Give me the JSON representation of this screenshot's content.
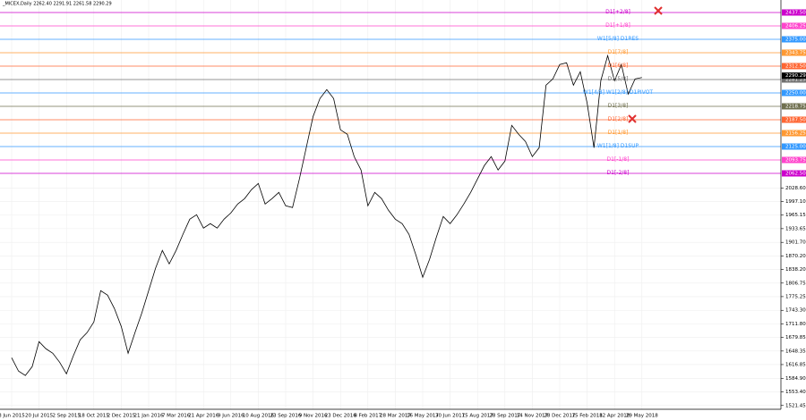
{
  "chart_data": {
    "type": "line",
    "header": "_MICEX,Daily  2262.40 2291.91 2261.58 2290.29",
    "categories": [
      "3 Jun 2015",
      null,
      null,
      null,
      "20 Jul 2015",
      null,
      null,
      null,
      "2 Sep 2015",
      null,
      null,
      null,
      "18 Oct 2015",
      null,
      null,
      null,
      "2 Dec 2015",
      null,
      null,
      null,
      "21 Jan 2016",
      null,
      null,
      null,
      "7 Mar 2016",
      null,
      null,
      null,
      "21 Apr 2016",
      null,
      null,
      null,
      "9 Jun 2016",
      null,
      null,
      null,
      "10 Aug 2016",
      null,
      null,
      null,
      "23 Sep 2016",
      null,
      null,
      null,
      "9 Nov 2016",
      null,
      null,
      null,
      "23 Dec 2016",
      null,
      null,
      null,
      "8 Feb 2017",
      null,
      null,
      null,
      "28 Mar 2017",
      null,
      null,
      null,
      "16 May 2017",
      null,
      null,
      null,
      "30 Jun 2017",
      null,
      null,
      null,
      "15 Aug 2017",
      null,
      null,
      null,
      "28 Sep 2017",
      null,
      null,
      null,
      "14 Nov 2017",
      null,
      null,
      null,
      "28 Dec 2017",
      null,
      null,
      null,
      "15 Feb 2018",
      null,
      null,
      null,
      "12 Apr 2018",
      null,
      null,
      null,
      "29 May 2018"
    ],
    "series": [
      {
        "name": "MICEX",
        "color": "#000000",
        "values": [
          1632.8,
          1601.6,
          1591.2,
          1612.0,
          1670.3,
          1653.7,
          1643.2,
          1622.4,
          1595.3,
          1637.0,
          1674.5,
          1691.1,
          1716.1,
          1789.1,
          1778.6,
          1747.4,
          1705.7,
          1643.2,
          1691.1,
          1737.0,
          1789.1,
          1841.1,
          1882.8,
          1851.5,
          1882.8,
          1920.3,
          1955.7,
          1966.1,
          1934.9,
          1945.3,
          1934.9,
          1955.7,
          1970.3,
          1991.1,
          2003.6,
          2024.4,
          2039.0,
          1991.1,
          2003.6,
          2018.2,
          1986.9,
          1982.8,
          2049.4,
          2122.3,
          2195.2,
          2236.9,
          2257.7,
          2236.9,
          2164.0,
          2153.6,
          2101.5,
          2070.3,
          1986.9,
          2018.2,
          2003.6,
          1976.5,
          1955.7,
          1945.3,
          1920.3,
          1872.4,
          1820.3,
          1862.0,
          1914.0,
          1961.9,
          1945.3,
          1966.1,
          1991.1,
          2018.2,
          2049.4,
          2080.7,
          2101.5,
          2070.3,
          2091.1,
          2174.4,
          2153.6,
          2136.9,
          2101.5,
          2122.3,
          2268.1,
          2282.7,
          2316.1,
          2320.2,
          2268.1,
          2299.4,
          2226.5,
          2122.3,
          2278.6,
          2336.9,
          2278.6,
          2316.1,
          2247.3,
          2282.7,
          2286.0
        ]
      }
    ],
    "ylim": [
      1512.6,
      2456.2
    ],
    "yticks": [
      {
        "value": 2028.6,
        "label": "2028.60"
      },
      {
        "value": 1997.1,
        "label": "1997.10"
      },
      {
        "value": 1965.15,
        "label": "1965.15"
      },
      {
        "value": 1933.65,
        "label": "1933.65"
      },
      {
        "value": 1901.7,
        "label": "1901.70"
      },
      {
        "value": 1870.2,
        "label": "1870.20"
      },
      {
        "value": 1838.2,
        "label": "1838.20"
      },
      {
        "value": 1806.75,
        "label": "1806.75"
      },
      {
        "value": 1775.25,
        "label": "1775.25"
      },
      {
        "value": 1743.3,
        "label": "1743.30"
      },
      {
        "value": 1711.8,
        "label": "1711.80"
      },
      {
        "value": 1679.85,
        "label": "1679.85"
      },
      {
        "value": 1648.35,
        "label": "1648.35"
      },
      {
        "value": 1616.85,
        "label": "1616.85"
      },
      {
        "value": 1584.9,
        "label": "1584.90"
      },
      {
        "value": 1553.4,
        "label": "1553.40"
      },
      {
        "value": 1521.45,
        "label": "1521.45"
      }
    ],
    "grid": true,
    "levels": [
      {
        "name": "D1[+2/8]",
        "value": 2437.5,
        "label": "2437.50",
        "color": "#cc00cc"
      },
      {
        "name": "D1[+1/8]",
        "value": 2406.25,
        "label": "2406.25",
        "color": "#ff44cc"
      },
      {
        "name": "W1[5/8] D1RES",
        "value": 2375,
        "label": "2375.00",
        "color": "#3399ff"
      },
      {
        "name": "D1[7/8]",
        "value": 2343.75,
        "label": "2343.75",
        "color": "#ff9933"
      },
      {
        "name": "D1[6/8]",
        "value": 2312.5,
        "label": "2312.50",
        "color": "#ff6633"
      },
      {
        "name": "D1[5/8]",
        "value": 2281.25,
        "label": "2281.25",
        "color": "#707070"
      },
      {
        "name": "W1[4/8] W1[2/8] D1PIVOT",
        "value": 2250,
        "label": "2250.00",
        "color": "#3399ff"
      },
      {
        "name": "D1[3/8]",
        "value": 2218.75,
        "label": "2218.75",
        "color": "#707050"
      },
      {
        "name": "D1[2/8]",
        "value": 2187.5,
        "label": "2187.50",
        "color": "#ff6633"
      },
      {
        "name": "D1[1/8]",
        "value": 2156.25,
        "label": "2156.25",
        "color": "#ff9933"
      },
      {
        "name": "W1[1/8] D1SUP",
        "value": 2125,
        "label": "2125.00",
        "color": "#3399ff"
      },
      {
        "name": "D1[-1/8]",
        "value": 2093.75,
        "label": "2093.75",
        "color": "#ff44cc"
      },
      {
        "name": "D1[-2/8]",
        "value": 2062.5,
        "label": "2062.50",
        "color": "#cc00cc"
      }
    ],
    "current": {
      "value": 2290.29,
      "label": "2290.29"
    }
  }
}
